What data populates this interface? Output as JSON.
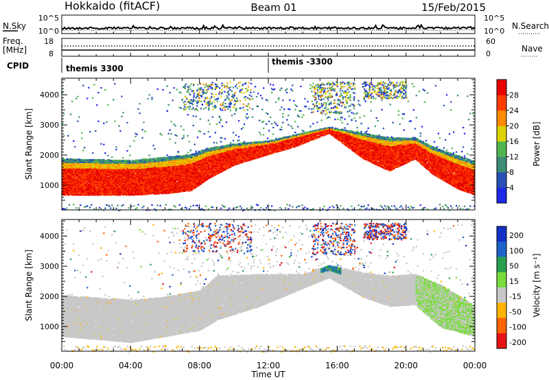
{
  "header": {
    "title_left": "Hokkaido (fitACF)",
    "title_center": "Beam 01",
    "title_right": "15/Feb/2015"
  },
  "noise_panel": {
    "left_label": "N.Sky",
    "right_label": "N.Search",
    "top_tick": "10^5",
    "bottom_tick": "10^0",
    "right_top_tick": "10^5",
    "right_bottom_tick": "10^0"
  },
  "freq_panel": {
    "left_label_1": "Freq.",
    "left_label_2": "[MHz]",
    "left_top_tick": "18",
    "left_bottom_tick": "8",
    "right_top_tick": "60",
    "right_bottom_tick": "0",
    "right_label": "Nave"
  },
  "cpid_panel": {
    "label": "CPID",
    "segments": [
      {
        "text": "themis 3300",
        "start_hour": 0
      },
      {
        "text": "themis -3300",
        "start_hour": 12
      }
    ]
  },
  "x_axis": {
    "ticks": [
      "00:00",
      "04:00",
      "08:00",
      "12:00",
      "16:00",
      "20:00",
      "00:00"
    ],
    "tick_hours": [
      0,
      4,
      8,
      12,
      16,
      20,
      24
    ],
    "label": "Time UT"
  },
  "power_panel": {
    "ylabel": "Slant Range [km]",
    "yticks": [
      "1000",
      "2000",
      "3000",
      "4000"
    ],
    "colorbar_label": "Power [dB]",
    "colorbar_ticks": [
      "4",
      "8",
      "12",
      "16",
      "20",
      "24",
      "28"
    ],
    "colors": [
      "#1e28e6",
      "#2850b4",
      "#3c8c78",
      "#50b450",
      "#dcd200",
      "#ff8c00",
      "#ff3c00",
      "#e60000"
    ]
  },
  "velocity_panel": {
    "ylabel": "Slant Range [km]",
    "yticks": [
      "1000",
      "2000",
      "3000",
      "4000"
    ],
    "colorbar_label": "Velocity [m s⁻¹]",
    "colorbar_ticks": [
      "200",
      "100",
      "50",
      "15",
      "-15",
      "-50",
      "-100",
      "-200"
    ],
    "colors": [
      "#1432c8",
      "#1e64c8",
      "#28a050",
      "#78dc3c",
      "#c8c8c8",
      "#ffb400",
      "#ff6400",
      "#e61414"
    ]
  },
  "chart_data": {
    "type": "heatmap",
    "x_range_hours": [
      0,
      24
    ],
    "y_range_km": [
      180,
      4550
    ],
    "power_scatter_bands": [
      {
        "name": "main",
        "points": [
          [
            0,
            700,
            1900
          ],
          [
            4,
            700,
            1850
          ],
          [
            6,
            750,
            1950
          ],
          [
            7.5,
            850,
            2050
          ],
          [
            8.5,
            1250,
            2250
          ],
          [
            10,
            1700,
            2400
          ],
          [
            12,
            2050,
            2500
          ],
          [
            13.5,
            2300,
            2700
          ],
          [
            15.5,
            2750,
            2950
          ],
          [
            17.5,
            1900,
            2750
          ],
          [
            19,
            1500,
            2600
          ],
          [
            20.5,
            1900,
            2600
          ],
          [
            21.5,
            1400,
            2300
          ],
          [
            23,
            900,
            2000
          ],
          [
            24,
            700,
            1800
          ]
        ]
      }
    ],
    "velocity_scatter_bands": [
      {
        "name": "main",
        "points": [
          [
            0,
            700,
            2050
          ],
          [
            4,
            500,
            1900
          ],
          [
            6,
            700,
            2000
          ],
          [
            8,
            900,
            2200
          ],
          [
            9,
            1250,
            2700
          ],
          [
            11.5,
            1700,
            2750
          ],
          [
            14,
            2300,
            2750
          ],
          [
            15.5,
            2650,
            3050
          ],
          [
            17.5,
            2000,
            2800
          ],
          [
            19,
            1700,
            2700
          ],
          [
            20.5,
            1750,
            2750
          ],
          [
            22,
            1000,
            2400
          ],
          [
            24,
            700,
            1700
          ]
        ]
      }
    ]
  }
}
